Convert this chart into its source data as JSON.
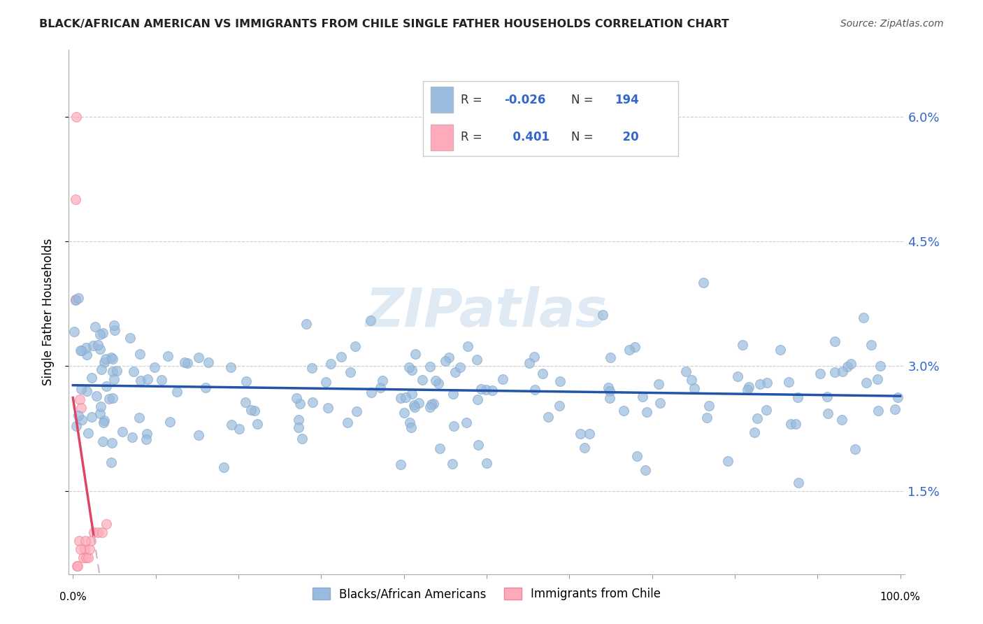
{
  "title": "BLACK/AFRICAN AMERICAN VS IMMIGRANTS FROM CHILE SINGLE FATHER HOUSEHOLDS CORRELATION CHART",
  "source": "Source: ZipAtlas.com",
  "ylabel": "Single Father Households",
  "ytick_values": [
    0.015,
    0.03,
    0.045,
    0.06
  ],
  "ytick_labels": [
    "1.5%",
    "3.0%",
    "4.5%",
    "6.0%"
  ],
  "xlim": [
    -0.005,
    1.005
  ],
  "ylim": [
    0.005,
    0.068
  ],
  "blue_R": -0.026,
  "blue_N": 194,
  "pink_R": 0.401,
  "pink_N": 20,
  "blue_scatter_color": "#99BBDD",
  "blue_scatter_edge": "#88AACC",
  "pink_scatter_color": "#FFAABB",
  "pink_scatter_edge": "#EE8899",
  "trendline_blue_color": "#2255AA",
  "trendline_pink_solid_color": "#DD4466",
  "trendline_pink_dash_color": "#DDAACC",
  "watermark": "ZIPatlas",
  "legend_label_blue": "Blacks/African Americans",
  "legend_label_pink": "Immigrants from Chile",
  "legend_box_color": "#AABBCC",
  "legend_text_R": "#333333",
  "legend_text_val": "#3366CC"
}
